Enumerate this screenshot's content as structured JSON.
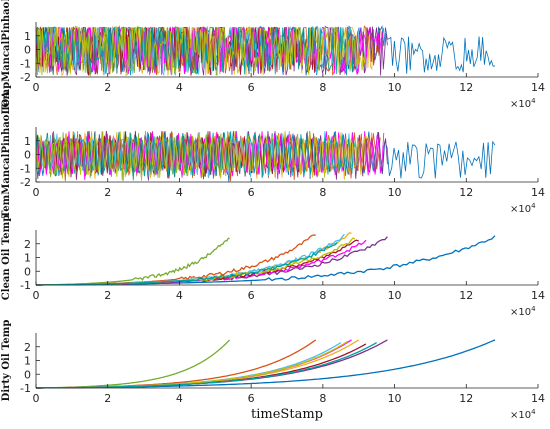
{
  "chart_data": [
    {
      "type": "line",
      "ylabel": "TempMancalPinhaoLA",
      "xlabel": "",
      "x_multiplier": "×10",
      "x_multiplier_exp": "4",
      "xlim": [
        0,
        14
      ],
      "ylim": [
        -2,
        2
      ],
      "xticks": [
        "0",
        "2",
        "4",
        "6",
        "8",
        "10",
        "12",
        "14"
      ],
      "yticks": [
        "-2",
        "-1",
        "0",
        "1"
      ],
      "pattern": "noise",
      "series": [
        {
          "color": "#0072bd",
          "x_end": 12.8,
          "seed": 11
        },
        {
          "color": "#d95319",
          "x_end": 9.6,
          "seed": 12
        },
        {
          "color": "#edb120",
          "x_end": 9.4,
          "seed": 13
        },
        {
          "color": "#7e2f8e",
          "x_end": 9.8,
          "seed": 14
        },
        {
          "color": "#77ac30",
          "x_end": 5.4,
          "seed": 15
        },
        {
          "color": "#4dbeee",
          "x_end": 9.0,
          "seed": 16
        },
        {
          "color": "#a2142f",
          "x_end": 7.8,
          "seed": 17
        },
        {
          "color": "#ff00ff",
          "x_end": 9.7,
          "seed": 18
        },
        {
          "color": "#00a0a0",
          "x_end": 8.9,
          "seed": 19
        },
        {
          "color": "#c0c000",
          "x_end": 9.2,
          "seed": 20
        }
      ]
    },
    {
      "type": "line",
      "ylabel": "TemMancalPinhaoLOA",
      "xlabel": "",
      "x_multiplier": "×10",
      "x_multiplier_exp": "4",
      "xlim": [
        0,
        14
      ],
      "ylim": [
        -2,
        2
      ],
      "xticks": [
        "0",
        "2",
        "4",
        "6",
        "8",
        "10",
        "12",
        "14"
      ],
      "yticks": [
        "-2",
        "-1",
        "0",
        "1"
      ],
      "pattern": "oscillation",
      "series": [
        {
          "color": "#0072bd",
          "x_end": 12.8,
          "seed": 21
        },
        {
          "color": "#d95319",
          "x_end": 9.6,
          "seed": 22
        },
        {
          "color": "#edb120",
          "x_end": 9.4,
          "seed": 23
        },
        {
          "color": "#7e2f8e",
          "x_end": 9.8,
          "seed": 24
        },
        {
          "color": "#77ac30",
          "x_end": 5.4,
          "seed": 25
        },
        {
          "color": "#4dbeee",
          "x_end": 9.0,
          "seed": 26
        },
        {
          "color": "#a2142f",
          "x_end": 7.8,
          "seed": 27
        },
        {
          "color": "#ff00ff",
          "x_end": 9.7,
          "seed": 28
        },
        {
          "color": "#00a0a0",
          "x_end": 8.9,
          "seed": 29
        },
        {
          "color": "#c0c000",
          "x_end": 9.2,
          "seed": 30
        }
      ]
    },
    {
      "type": "line",
      "ylabel": "Clean Oil Temp",
      "xlabel": "",
      "x_multiplier": "×10",
      "x_multiplier_exp": "4",
      "xlim": [
        0,
        14
      ],
      "ylim": [
        -1,
        3
      ],
      "xticks": [
        "0",
        "2",
        "4",
        "6",
        "8",
        "10",
        "12",
        "14"
      ],
      "yticks": [
        "-1",
        "0",
        "1",
        "2"
      ],
      "pattern": "exponential",
      "noisy": true,
      "series": [
        {
          "color": "#0072bd",
          "x_end": 12.8,
          "y_end": 2.5
        },
        {
          "color": "#77ac30",
          "x_end": 5.4,
          "y_end": 2.5
        },
        {
          "color": "#d95319",
          "x_end": 7.8,
          "y_end": 2.7
        },
        {
          "color": "#edb120",
          "x_end": 8.8,
          "y_end": 2.8
        },
        {
          "color": "#7e2f8e",
          "x_end": 9.8,
          "y_end": 2.5
        },
        {
          "color": "#ff00ff",
          "x_end": 9.2,
          "y_end": 2.2
        },
        {
          "color": "#4dbeee",
          "x_end": 8.6,
          "y_end": 2.6
        },
        {
          "color": "#a2142f",
          "x_end": 9.0,
          "y_end": 2.3
        },
        {
          "color": "#c0c000",
          "x_end": 8.9,
          "y_end": 2.4
        },
        {
          "color": "#00a0a0",
          "x_end": 8.4,
          "y_end": 2.1
        }
      ]
    },
    {
      "type": "line",
      "ylabel": "Dirty Oil Temp",
      "xlabel": "timeStamp",
      "x_multiplier": "×10",
      "x_multiplier_exp": "4",
      "xlim": [
        0,
        14
      ],
      "ylim": [
        -1,
        3
      ],
      "xticks": [
        "0",
        "2",
        "4",
        "6",
        "8",
        "10",
        "12",
        "14"
      ],
      "yticks": [
        "-1",
        "0",
        "1",
        "2"
      ],
      "pattern": "exponential",
      "noisy": false,
      "series": [
        {
          "color": "#0072bd",
          "x_end": 12.8,
          "y_end": 2.5
        },
        {
          "color": "#77ac30",
          "x_end": 5.4,
          "y_end": 2.5
        },
        {
          "color": "#d95319",
          "x_end": 7.8,
          "y_end": 2.5
        },
        {
          "color": "#edb120",
          "x_end": 9.0,
          "y_end": 2.5
        },
        {
          "color": "#7e2f8e",
          "x_end": 9.8,
          "y_end": 2.5
        },
        {
          "color": "#ff00ff",
          "x_end": 8.8,
          "y_end": 2.5
        },
        {
          "color": "#4dbeee",
          "x_end": 8.5,
          "y_end": 2.3
        },
        {
          "color": "#a2142f",
          "x_end": 9.2,
          "y_end": 2.2
        },
        {
          "color": "#c0c000",
          "x_end": 8.7,
          "y_end": 2.4
        },
        {
          "color": "#00a0a0",
          "x_end": 9.5,
          "y_end": 2.3
        }
      ]
    }
  ]
}
